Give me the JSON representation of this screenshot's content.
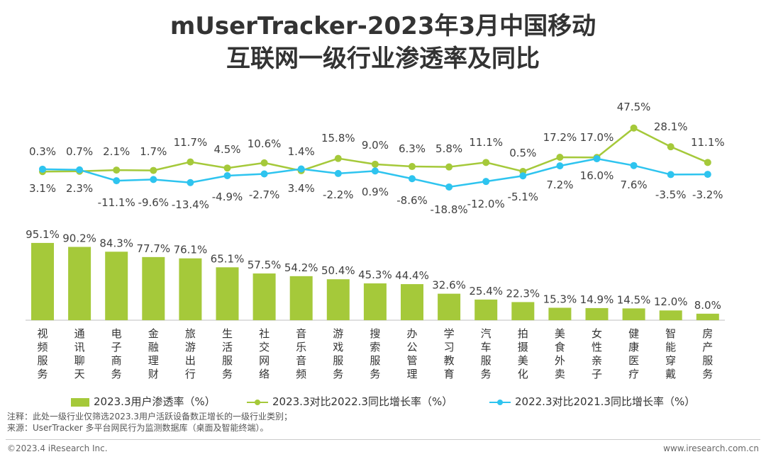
{
  "title": {
    "line1": "mUserTracker-2023年3月中国移动",
    "line2": "互联网一级行业渗透率及同比"
  },
  "chart_data": {
    "type": "bar",
    "categories": [
      "视频服务",
      "通讯聊天",
      "电子商务",
      "金融理财",
      "旅游出行",
      "生活服务",
      "社交网络",
      "音乐音频",
      "游戏服务",
      "搜索服务",
      "办公管理",
      "学习教育",
      "汽车服务",
      "拍摄美化",
      "美食外卖",
      "女性亲子",
      "健康医疗",
      "智能穿戴",
      "房产服务"
    ],
    "series": [
      {
        "name": "2023.3用户渗透率（%）",
        "type": "bar",
        "color": "#a5c93a",
        "values": [
          95.1,
          90.2,
          84.3,
          77.7,
          76.1,
          65.1,
          57.5,
          54.2,
          50.4,
          45.3,
          44.4,
          32.6,
          25.4,
          22.3,
          15.3,
          14.9,
          14.5,
          12.0,
          8.0
        ],
        "labels": [
          "95.1%",
          "90.2%",
          "84.3%",
          "77.7%",
          "76.1%",
          "65.1%",
          "57.5%",
          "54.2%",
          "50.4%",
          "45.3%",
          "44.4%",
          "32.6%",
          "25.4%",
          "22.3%",
          "15.3%",
          "14.9%",
          "14.5%",
          "12.0%",
          "8.0%"
        ]
      },
      {
        "name": "2023.3对比2022.3同比增长率（%）",
        "type": "line",
        "color": "#a5c93a",
        "values": [
          0.3,
          0.7,
          2.1,
          1.7,
          11.7,
          4.5,
          10.6,
          1.4,
          15.8,
          9.0,
          6.3,
          5.8,
          11.1,
          0.5,
          17.2,
          17.0,
          47.5,
          28.1,
          11.1
        ],
        "labels": [
          "0.3%",
          "0.7%",
          "2.1%",
          "1.7%",
          "11.7%",
          "4.5%",
          "10.6%",
          "1.4%",
          "15.8%",
          "9.0%",
          "6.3%",
          "5.8%",
          "11.1%",
          "0.5%",
          "17.2%",
          "17.0%",
          "47.5%",
          "28.1%",
          "11.1%"
        ]
      },
      {
        "name": "2022.3对比2021.3同比增长率（%）",
        "type": "line",
        "color": "#2ec4ef",
        "values": [
          3.1,
          2.3,
          -11.1,
          -9.6,
          -13.4,
          -4.9,
          -2.7,
          3.4,
          -2.2,
          0.9,
          -8.6,
          -18.8,
          -12.0,
          -5.1,
          7.2,
          16.0,
          7.6,
          -3.5,
          -3.2
        ],
        "labels": [
          "3.1%",
          "2.3%",
          "-11.1%",
          "-9.6%",
          "-13.4%",
          "-4.9%",
          "-2.7%",
          "3.4%",
          "-2.2%",
          "0.9%",
          "-8.6%",
          "-18.8%",
          "-12.0%",
          "-5.1%",
          "7.2%",
          "16.0%",
          "7.6%",
          "-3.5%",
          "-3.2%"
        ]
      }
    ],
    "legend": "bottom"
  },
  "notes": {
    "note": "注释：此处一级行业仅筛选2023.3用户活跃设备数正增长的一级行业类别；",
    "source": "来源：UserTracker 多平台网民行为监测数据库（桌面及智能终端）。"
  },
  "footer": {
    "left": "©2023.4 iResearch Inc.",
    "right": "www.iresearch.com.cn"
  }
}
